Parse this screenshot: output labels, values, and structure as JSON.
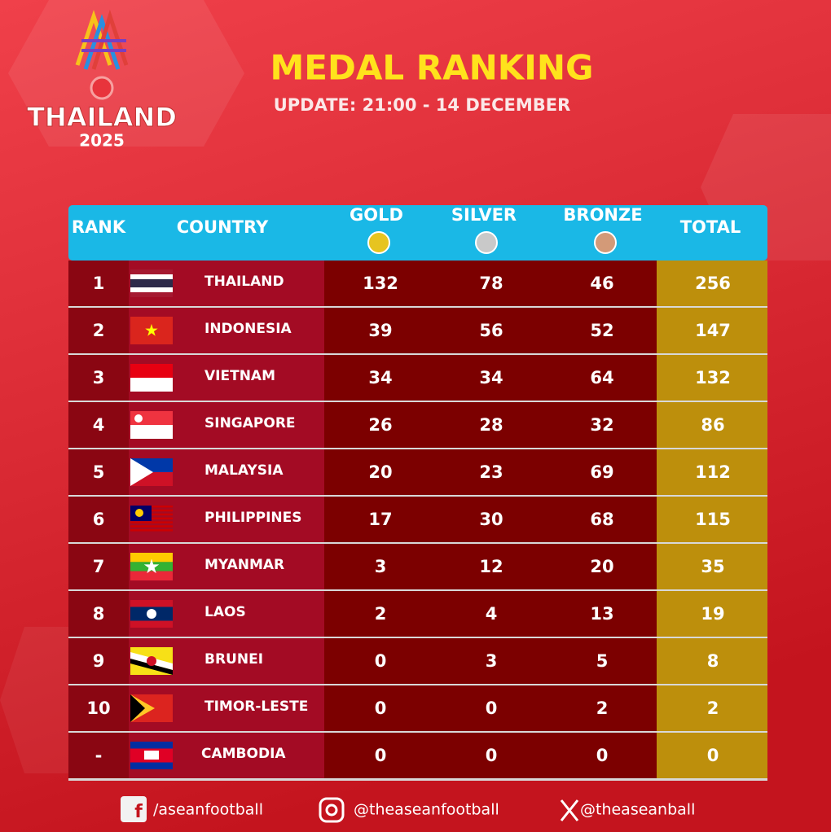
{
  "header": {
    "logo": {
      "name": "THAILAND",
      "year": "2025"
    },
    "title": "MEDAL RANKING",
    "subtitle": "UPDATE: 21:00 - 14 DECEMBER"
  },
  "table": {
    "columns": [
      "RANK",
      "COUNTRY",
      "GOLD",
      "SILVER",
      "BRONZE",
      "TOTAL"
    ],
    "rows": [
      [
        1,
        "THAILAND",
        132,
        78,
        46,
        256
      ],
      [
        2,
        "INDONESIA",
        39,
        56,
        52,
        147
      ],
      [
        3,
        "VIETNAM",
        34,
        34,
        64,
        132
      ],
      [
        4,
        "SINGAPORE",
        26,
        28,
        32,
        86
      ],
      [
        5,
        "MALAYSIA",
        20,
        23,
        69,
        112
      ],
      [
        6,
        "PHILIPPINES",
        17,
        30,
        68,
        115
      ],
      [
        7,
        "MYANMAR",
        3,
        12,
        20,
        35
      ],
      [
        8,
        "LAOS",
        2,
        4,
        13,
        19
      ],
      [
        9,
        "BRUNEI",
        0,
        3,
        5,
        8
      ],
      [
        10,
        "TIMOR-LESTE",
        0,
        0,
        2,
        2
      ],
      [
        "-",
        "CAMBODIA",
        0,
        0,
        0,
        0
      ]
    ]
  },
  "footer": {
    "facebook": "/aseanfootball",
    "instagram": "@theaseanfootball",
    "x": "@theaseanball"
  }
}
